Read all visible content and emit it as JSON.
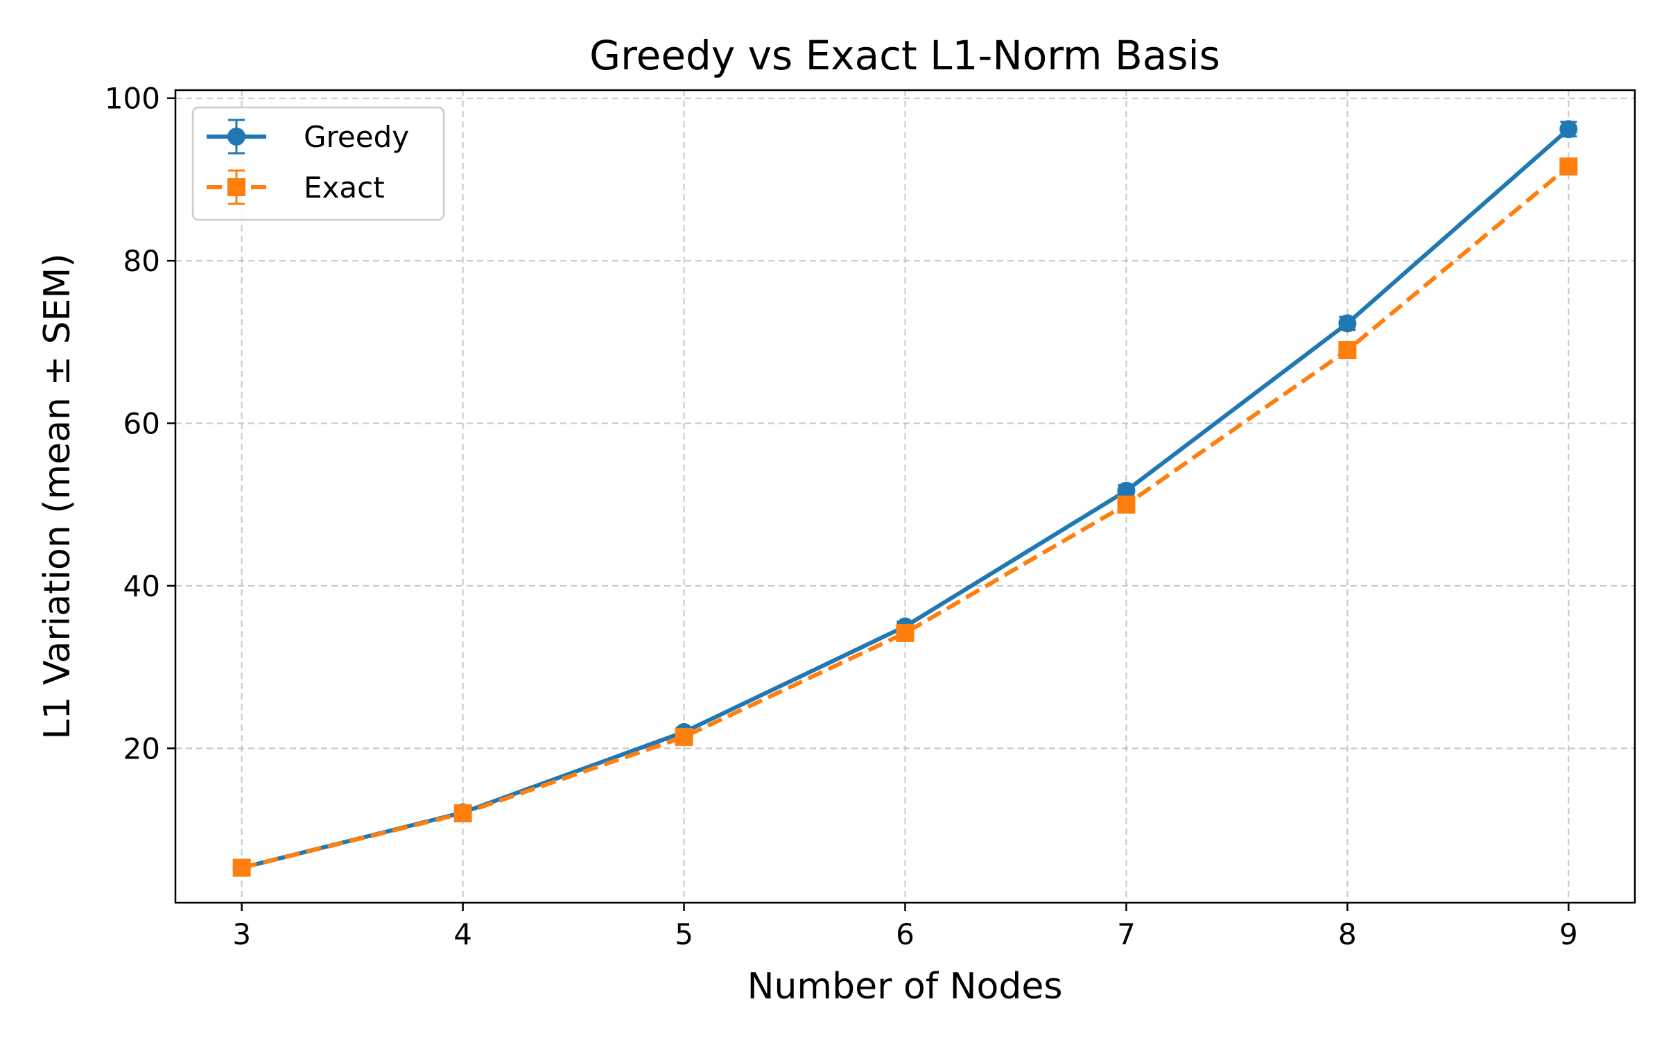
{
  "chart_data": {
    "type": "line",
    "title": "Greedy vs Exact L1-Norm Basis",
    "xlabel": "Number of Nodes",
    "ylabel": "L1 Variation (mean ± SEM)",
    "x": [
      3,
      4,
      5,
      6,
      7,
      8,
      9
    ],
    "xlim": [
      2.7,
      9.3
    ],
    "ylim": [
      1,
      101
    ],
    "xticks": [
      3,
      4,
      5,
      6,
      7,
      8,
      9
    ],
    "yticks": [
      20,
      40,
      60,
      80,
      100
    ],
    "grid": true,
    "legend_position": "top-left",
    "series": [
      {
        "name": "Greedy",
        "color": "#1f77b4",
        "marker": "circle",
        "line_style": "solid",
        "values": [
          5.3,
          12.1,
          22.0,
          35.0,
          51.7,
          72.3,
          96.2
        ],
        "sem": [
          0.3,
          0.4,
          0.5,
          0.6,
          0.7,
          0.8,
          0.9
        ]
      },
      {
        "name": "Exact",
        "color": "#ff7f0e",
        "marker": "square",
        "line_style": "dashed",
        "values": [
          5.3,
          12.0,
          21.4,
          34.2,
          50.0,
          69.0,
          91.6
        ],
        "sem": [
          0.3,
          0.4,
          0.5,
          0.6,
          0.7,
          0.8,
          0.9
        ]
      }
    ]
  }
}
